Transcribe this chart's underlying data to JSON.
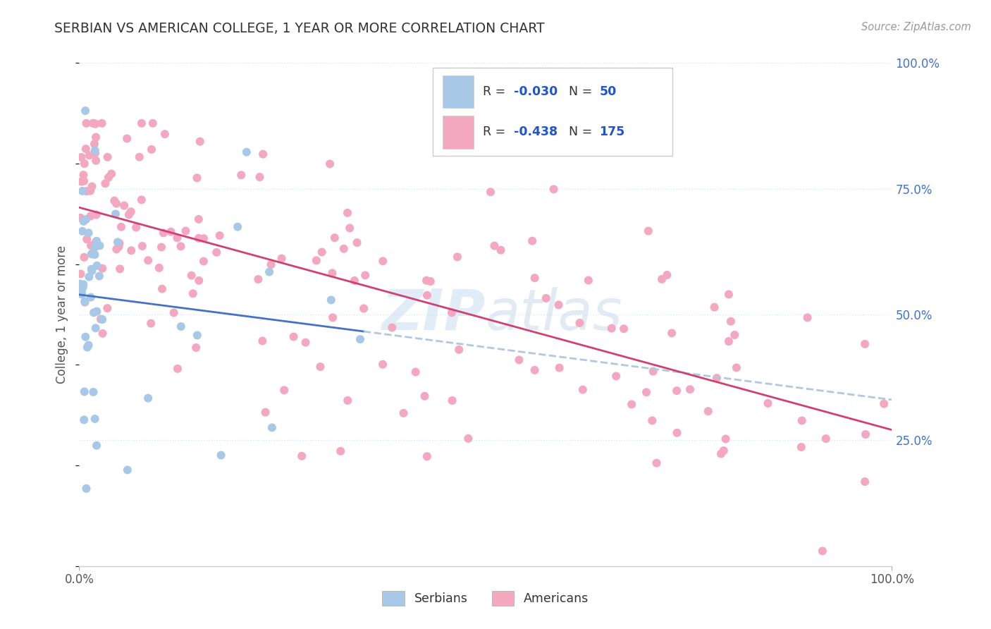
{
  "title": "SERBIAN VS AMERICAN COLLEGE, 1 YEAR OR MORE CORRELATION CHART",
  "source": "Source: ZipAtlas.com",
  "ylabel": "College, 1 year or more",
  "watermark_zip": "ZIP",
  "watermark_atlas": "atlas",
  "legend_R_serbian": "-0.030",
  "legend_N_serbian": "50",
  "legend_R_american": "-0.438",
  "legend_N_american": "175",
  "serbian_color": "#a8c8e8",
  "american_color": "#f4a8c0",
  "trend_serbian_color": "#4472c4",
  "trend_american_color": "#d04070",
  "bg_color": "#ffffff",
  "title_color": "#333333",
  "source_color": "#999999",
  "ylabel_color": "#555555",
  "right_tick_color": "#4472c4",
  "dashed_line_color": "#b0c8e0",
  "grid_color": "#d8e8f0",
  "legend_border_color": "#cccccc",
  "bottom_legend_label_color": "#333333",
  "R_value_color": "#2255cc",
  "N_value_color": "#2255cc",
  "N_label_color": "#333333",
  "R_label_color": "#333333"
}
